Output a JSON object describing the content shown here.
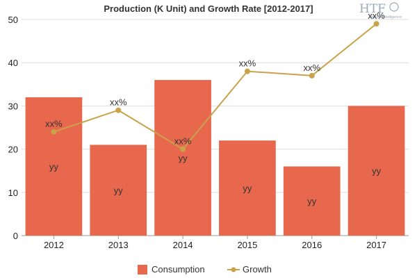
{
  "chart_data": {
    "type": "bar",
    "title": "Production (K Unit) and Growth Rate [2012-2017]",
    "categories": [
      "2012",
      "2013",
      "2014",
      "2015",
      "2016",
      "2017"
    ],
    "series": [
      {
        "name": "Consumption",
        "type": "bar",
        "values": [
          32,
          21,
          36,
          22,
          16,
          30
        ],
        "color": "#e8684e",
        "labels": [
          "",
          "",
          "",
          "",
          "",
          ""
        ]
      },
      {
        "name": "Growth",
        "type": "line",
        "values": [
          24,
          29,
          20,
          38,
          37,
          49
        ],
        "color": "#c9a24a",
        "labels": [
          "xx%",
          "xx%",
          "xx%",
          "xx%",
          "xx%",
          "xx%"
        ]
      }
    ],
    "bar_labels": [
      "yy",
      "yy",
      "yy",
      "yy",
      "yy",
      "yy"
    ],
    "yticks": [
      "0",
      "10",
      "20",
      "30",
      "40",
      "50"
    ],
    "ylim": [
      0,
      50
    ],
    "xlabel": "",
    "ylabel": "",
    "grid": true,
    "legend": "bottom-center"
  },
  "logo": {
    "brand": "HTF",
    "tagline": "Market Intelligence"
  }
}
